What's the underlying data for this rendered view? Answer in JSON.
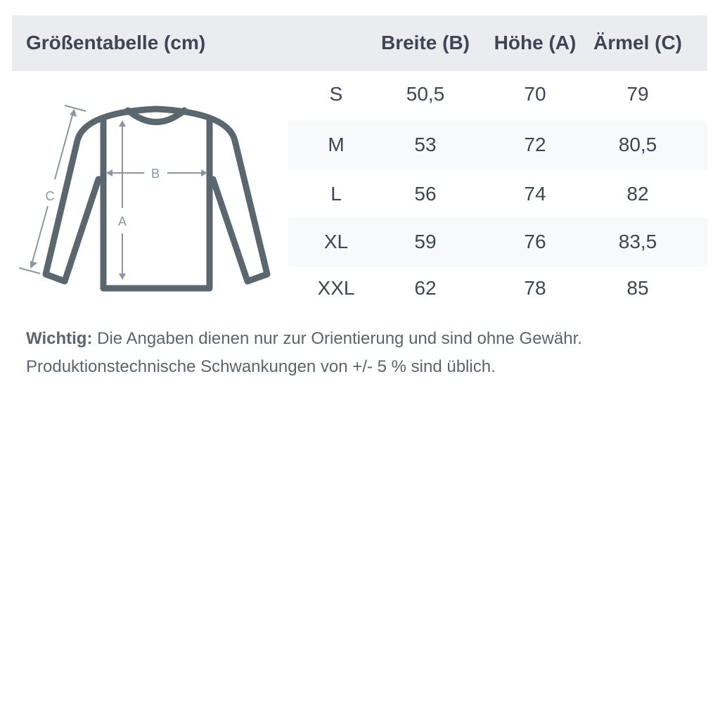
{
  "table": {
    "title": "Größentabelle (cm)",
    "columns": [
      "Breite (B)",
      "Höhe (A)",
      "Ärmel (C)"
    ],
    "rows": [
      {
        "size": "S",
        "values": [
          "50,5",
          "70",
          "79"
        ]
      },
      {
        "size": "M",
        "values": [
          "53",
          "72",
          "80,5"
        ]
      },
      {
        "size": "L",
        "values": [
          "56",
          "74",
          "82"
        ]
      },
      {
        "size": "XL",
        "values": [
          "59",
          "76",
          "83,5"
        ]
      },
      {
        "size": "XXL",
        "values": [
          "62",
          "78",
          "85"
        ]
      }
    ]
  },
  "diagram": {
    "label_a": "A",
    "label_b": "B",
    "label_c": "C"
  },
  "note": {
    "bold": "Wichtig:",
    "line1": " Die Angaben dienen nur zur Orientierung und sind ohne Gewähr.",
    "line2": "Produktionstechnische Schwankungen von +/- 5 % sind üblich."
  },
  "colors": {
    "header_bg": "#ebecf0",
    "stripe_bg": "#f8f9fb",
    "text": "#3f4653",
    "shirt": "#5b676e",
    "measure": "#8a96a0"
  }
}
